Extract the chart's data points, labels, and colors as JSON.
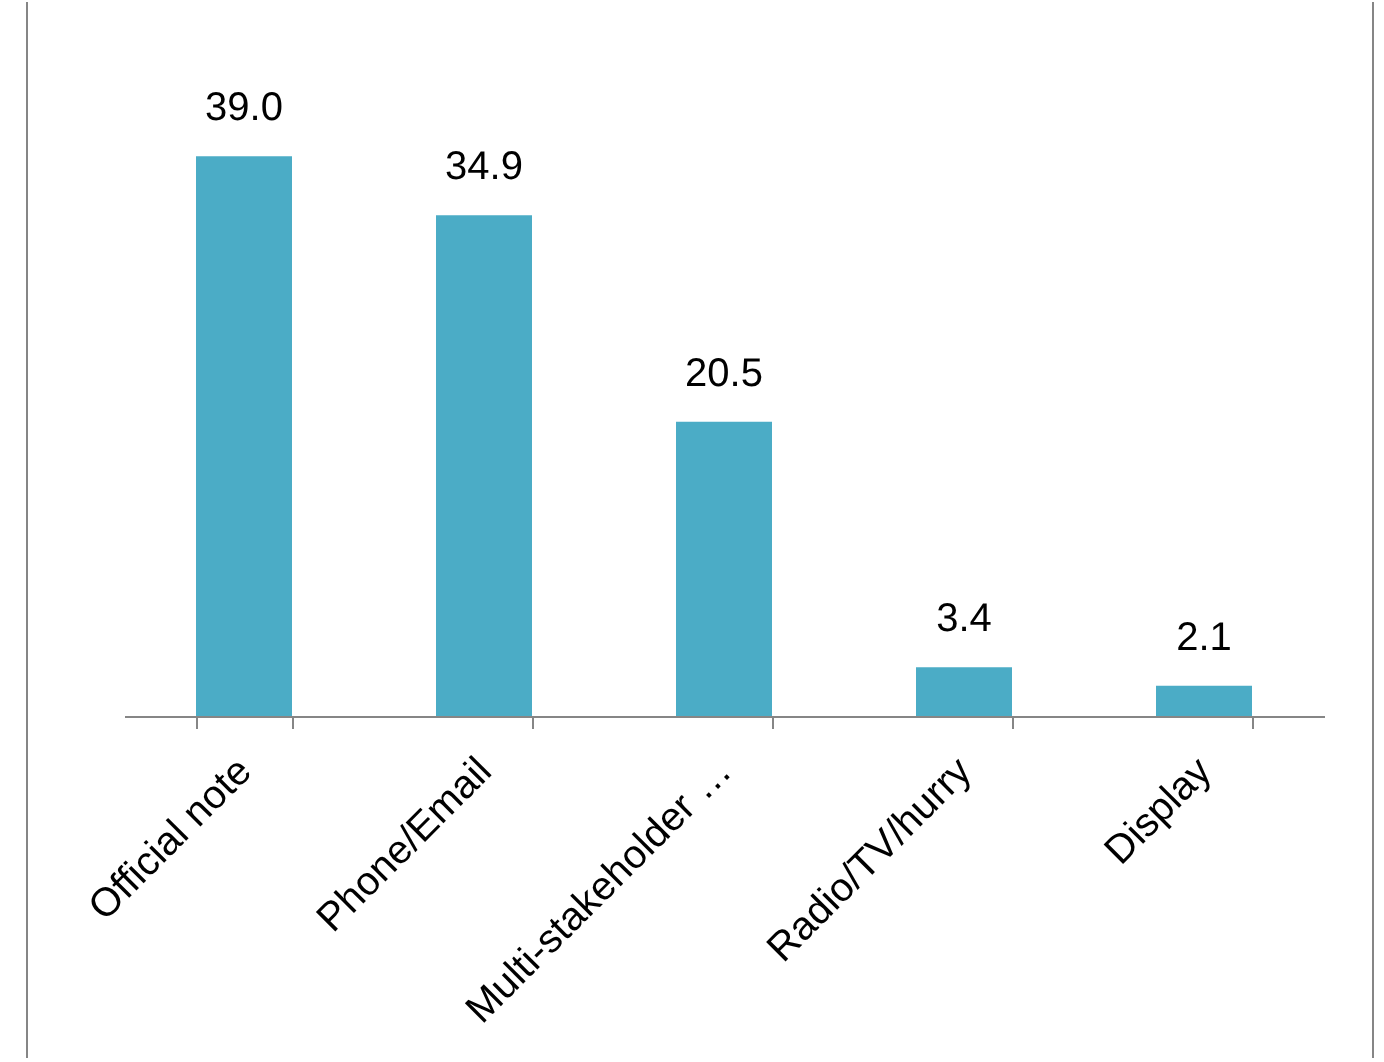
{
  "chart_data": {
    "type": "bar",
    "categories": [
      "Official note",
      "Phone/Email",
      "Multi-stakeholder …",
      "Radio/TV/hurry",
      "Display"
    ],
    "values": [
      39.0,
      34.9,
      20.5,
      3.4,
      2.1
    ],
    "value_labels": [
      "39.0",
      "34.9",
      "20.5",
      "3.4",
      "2.1"
    ],
    "color": "#4bacc6"
  }
}
